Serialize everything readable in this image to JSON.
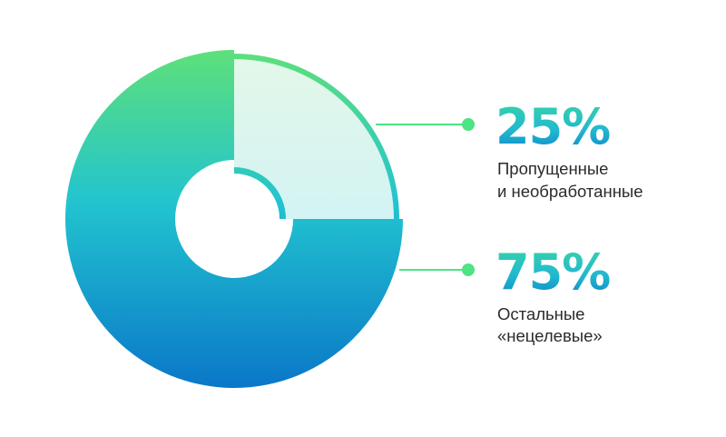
{
  "chart_data": {
    "type": "pie",
    "series": [
      {
        "label": "25%",
        "value": 25,
        "caption": [
          "Пропущенные",
          "и необработанные"
        ]
      },
      {
        "label": "75%",
        "value": 75,
        "caption": [
          "Остальные",
          "«нецелевые»"
        ]
      }
    ],
    "legend": "right"
  },
  "colors": {
    "gradient_top": "#5ee07a",
    "gradient_mid": "#22c4cf",
    "gradient_bottom": "#0a77c8",
    "marker": "#4ee384",
    "small_slice_fill_top": "#e3f8e8",
    "small_slice_fill_bottom": "#d3f3f4"
  }
}
